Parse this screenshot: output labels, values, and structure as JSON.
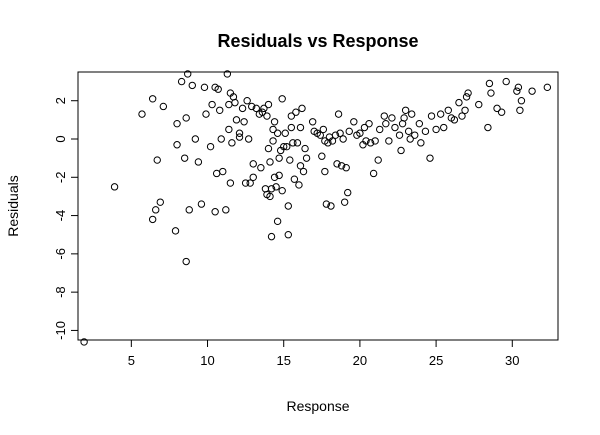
{
  "chart_data": {
    "type": "scatter",
    "title": "Residuals vs Response",
    "xlabel": "Response",
    "ylabel": "Residuals",
    "xlim": [
      1.5,
      33.0
    ],
    "ylim": [
      -10.5,
      3.5
    ],
    "xticks": [
      5,
      10,
      15,
      20,
      25,
      30
    ],
    "yticks": [
      -10,
      -8,
      -6,
      -4,
      -2,
      0,
      2
    ],
    "grid": false,
    "legend": "none",
    "points": [
      [
        1.9,
        -10.6
      ],
      [
        3.9,
        -2.5
      ],
      [
        5.7,
        1.3
      ],
      [
        6.4,
        2.1
      ],
      [
        6.4,
        -4.2
      ],
      [
        6.6,
        -3.7
      ],
      [
        6.7,
        -1.1
      ],
      [
        6.9,
        -3.3
      ],
      [
        7.1,
        1.7
      ],
      [
        7.9,
        -4.8
      ],
      [
        8.0,
        0.8
      ],
      [
        8.0,
        -0.3
      ],
      [
        8.3,
        3.0
      ],
      [
        8.5,
        -1.0
      ],
      [
        8.6,
        1.1
      ],
      [
        8.6,
        -6.4
      ],
      [
        8.7,
        3.4
      ],
      [
        8.8,
        -3.7
      ],
      [
        9.0,
        2.8
      ],
      [
        9.2,
        0.0
      ],
      [
        9.4,
        -1.2
      ],
      [
        9.6,
        -3.4
      ],
      [
        9.8,
        2.7
      ],
      [
        9.9,
        1.3
      ],
      [
        10.2,
        -0.4
      ],
      [
        10.3,
        1.8
      ],
      [
        10.5,
        2.7
      ],
      [
        10.5,
        -3.8
      ],
      [
        10.6,
        -1.8
      ],
      [
        10.7,
        2.6
      ],
      [
        10.8,
        1.5
      ],
      [
        10.9,
        0.0
      ],
      [
        11.0,
        -1.7
      ],
      [
        11.2,
        -3.7
      ],
      [
        11.3,
        3.4
      ],
      [
        11.4,
        1.8
      ],
      [
        11.4,
        0.5
      ],
      [
        11.5,
        2.4
      ],
      [
        11.5,
        -2.3
      ],
      [
        11.6,
        -0.2
      ],
      [
        11.7,
        2.2
      ],
      [
        11.8,
        1.9
      ],
      [
        11.9,
        1.0
      ],
      [
        12.1,
        0.3
      ],
      [
        12.1,
        0.1
      ],
      [
        12.3,
        1.6
      ],
      [
        12.4,
        0.9
      ],
      [
        12.5,
        -2.3
      ],
      [
        12.6,
        2.0
      ],
      [
        12.7,
        0.0
      ],
      [
        12.8,
        -2.3
      ],
      [
        12.9,
        1.7
      ],
      [
        13.0,
        -1.3
      ],
      [
        13.0,
        -2.0
      ],
      [
        13.2,
        1.6
      ],
      [
        13.4,
        1.3
      ],
      [
        13.5,
        -1.5
      ],
      [
        13.6,
        1.4
      ],
      [
        13.7,
        1.6
      ],
      [
        13.8,
        -2.6
      ],
      [
        13.9,
        1.2
      ],
      [
        13.9,
        -2.9
      ],
      [
        14.0,
        1.8
      ],
      [
        14.0,
        -0.5
      ],
      [
        14.1,
        -1.2
      ],
      [
        14.1,
        -3.0
      ],
      [
        14.2,
        -2.6
      ],
      [
        14.2,
        -5.1
      ],
      [
        14.3,
        0.5
      ],
      [
        14.3,
        -0.1
      ],
      [
        14.4,
        0.9
      ],
      [
        14.4,
        -2.0
      ],
      [
        14.5,
        -2.5
      ],
      [
        14.6,
        0.3
      ],
      [
        14.6,
        -4.3
      ],
      [
        14.7,
        -1.0
      ],
      [
        14.7,
        -1.9
      ],
      [
        14.8,
        -0.6
      ],
      [
        14.9,
        2.1
      ],
      [
        14.9,
        -2.7
      ],
      [
        15.0,
        -0.4
      ],
      [
        15.1,
        0.3
      ],
      [
        15.2,
        -0.4
      ],
      [
        15.3,
        -5.0
      ],
      [
        15.3,
        -3.5
      ],
      [
        15.4,
        -1.1
      ],
      [
        15.5,
        1.2
      ],
      [
        15.5,
        0.6
      ],
      [
        15.6,
        -0.2
      ],
      [
        15.7,
        -2.1
      ],
      [
        15.8,
        1.4
      ],
      [
        15.9,
        -0.2
      ],
      [
        16.0,
        -2.4
      ],
      [
        16.1,
        0.6
      ],
      [
        16.1,
        -1.4
      ],
      [
        16.2,
        1.6
      ],
      [
        16.3,
        -1.7
      ],
      [
        16.4,
        -0.5
      ],
      [
        16.5,
        -1.0
      ],
      [
        16.9,
        0.9
      ],
      [
        17.0,
        0.4
      ],
      [
        17.2,
        0.3
      ],
      [
        17.4,
        0.2
      ],
      [
        17.5,
        -0.9
      ],
      [
        17.6,
        0.5
      ],
      [
        17.7,
        -0.1
      ],
      [
        17.7,
        -1.7
      ],
      [
        17.8,
        -3.4
      ],
      [
        17.9,
        -0.2
      ],
      [
        18.0,
        0.1
      ],
      [
        18.1,
        -3.5
      ],
      [
        18.2,
        -0.1
      ],
      [
        18.4,
        0.2
      ],
      [
        18.5,
        -1.3
      ],
      [
        18.6,
        1.3
      ],
      [
        18.7,
        0.3
      ],
      [
        18.8,
        -1.4
      ],
      [
        18.9,
        0.0
      ],
      [
        19.0,
        -3.3
      ],
      [
        19.1,
        -1.5
      ],
      [
        19.2,
        -2.8
      ],
      [
        19.3,
        0.4
      ],
      [
        19.6,
        0.9
      ],
      [
        19.8,
        0.2
      ],
      [
        20.0,
        0.3
      ],
      [
        20.2,
        -0.3
      ],
      [
        20.3,
        0.6
      ],
      [
        20.4,
        -0.1
      ],
      [
        20.6,
        0.8
      ],
      [
        20.7,
        -0.2
      ],
      [
        20.9,
        -1.8
      ],
      [
        21.0,
        -0.1
      ],
      [
        21.2,
        -1.1
      ],
      [
        21.3,
        0.5
      ],
      [
        21.6,
        1.2
      ],
      [
        21.7,
        0.8
      ],
      [
        21.9,
        -0.1
      ],
      [
        22.1,
        1.1
      ],
      [
        22.3,
        0.6
      ],
      [
        22.6,
        0.2
      ],
      [
        22.7,
        -0.6
      ],
      [
        22.8,
        0.8
      ],
      [
        22.9,
        1.1
      ],
      [
        23.0,
        1.5
      ],
      [
        23.2,
        0.4
      ],
      [
        23.3,
        0.0
      ],
      [
        23.4,
        1.3
      ],
      [
        23.6,
        0.2
      ],
      [
        23.9,
        0.8
      ],
      [
        24.0,
        -0.2
      ],
      [
        24.3,
        0.4
      ],
      [
        24.6,
        -1.0
      ],
      [
        24.7,
        1.2
      ],
      [
        25.0,
        0.5
      ],
      [
        25.3,
        1.3
      ],
      [
        25.5,
        0.6
      ],
      [
        25.8,
        1.5
      ],
      [
        26.0,
        1.1
      ],
      [
        26.2,
        1.0
      ],
      [
        26.5,
        1.9
      ],
      [
        26.7,
        1.2
      ],
      [
        26.9,
        1.5
      ],
      [
        27.0,
        2.2
      ],
      [
        27.1,
        2.4
      ],
      [
        27.8,
        1.8
      ],
      [
        28.4,
        0.6
      ],
      [
        28.5,
        2.9
      ],
      [
        28.6,
        2.4
      ],
      [
        29.0,
        1.6
      ],
      [
        29.3,
        1.4
      ],
      [
        29.6,
        3.0
      ],
      [
        30.3,
        2.5
      ],
      [
        30.4,
        2.7
      ],
      [
        30.5,
        1.5
      ],
      [
        30.6,
        2.0
      ],
      [
        31.3,
        2.5
      ],
      [
        32.3,
        2.7
      ]
    ]
  }
}
